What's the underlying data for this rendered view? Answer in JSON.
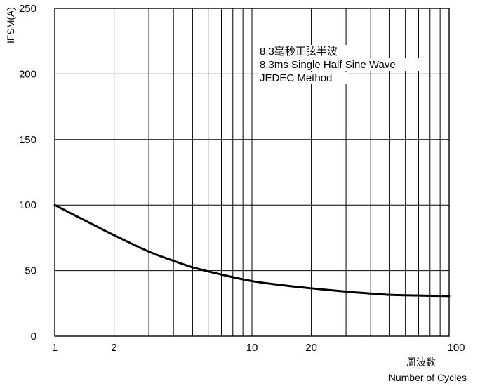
{
  "chart_data": {
    "type": "line",
    "x_scale": "log",
    "xlim": [
      1,
      100
    ],
    "ylim": [
      0,
      250
    ],
    "grid": true,
    "ylabel": "IFSM(A)",
    "xlabel_cn": "周波数",
    "xlabel": "Number of Cycles",
    "x_tick_labels": [
      {
        "value": 1,
        "label": "1"
      },
      {
        "value": 2,
        "label": "2"
      },
      {
        "value": 10,
        "label": "10"
      },
      {
        "value": 20,
        "label": "20"
      },
      {
        "value": 100,
        "label": "100"
      }
    ],
    "x_grid_values": [
      1,
      2,
      3,
      4,
      5,
      6,
      7,
      8,
      9,
      10,
      20,
      30,
      40,
      50,
      60,
      70,
      80,
      90,
      100
    ],
    "y_tick_labels": [
      {
        "value": 0,
        "label": "0"
      },
      {
        "value": 50,
        "label": "50"
      },
      {
        "value": 100,
        "label": "100"
      },
      {
        "value": 150,
        "label": "150"
      },
      {
        "value": 200,
        "label": "200"
      },
      {
        "value": 250,
        "label": "250"
      }
    ],
    "annotations": [
      "8.3毫秒正弦半波",
      "8.3ms Single Half Sine Wave",
      "JEDEC Method"
    ],
    "series": [
      {
        "color": "#000000",
        "x": [
          1,
          1.5,
          2,
          3,
          4,
          5,
          7,
          10,
          15,
          20,
          30,
          40,
          50,
          60,
          70,
          80,
          100
        ],
        "y": [
          100,
          86.5,
          77,
          64.5,
          57.5,
          52.5,
          47,
          42,
          38.5,
          36.5,
          34,
          32.5,
          31.5,
          31.2,
          31,
          30.8,
          30.6
        ]
      }
    ]
  }
}
